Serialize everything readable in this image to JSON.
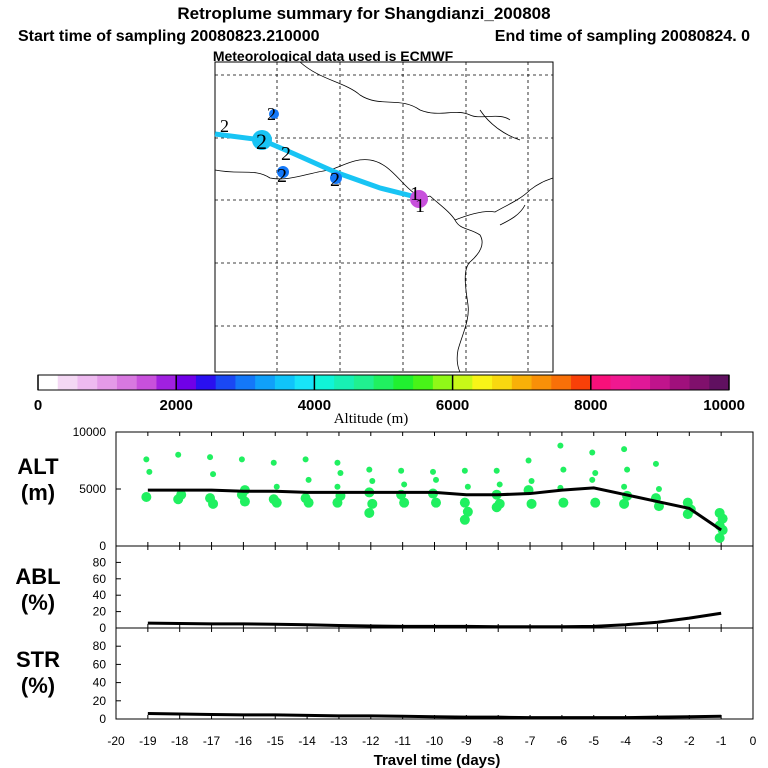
{
  "titles": {
    "main": "Retroplume summary for Shangdianzi_200808",
    "start": "Start time of sampling 20080823.210000",
    "end": "End time of sampling 20080824.     0",
    "met": "Meteorological data used is ECMWF"
  },
  "colorbar": {
    "label": "Altitude (m)",
    "ticks": [
      "0",
      "2000",
      "4000",
      "6000",
      "8000",
      "10000"
    ],
    "colors": [
      "#ffffff",
      "#f4d8f4",
      "#eebaf0",
      "#e49ae8",
      "#d878e0",
      "#c850dc",
      "#a020e0",
      "#7000e8",
      "#2a10f0",
      "#1a48f4",
      "#1478f8",
      "#10a0fa",
      "#10c4fa",
      "#18e4f8",
      "#10f4d8",
      "#18f0b4",
      "#20f090",
      "#20f060",
      "#20f030",
      "#48f418",
      "#90f818",
      "#c8f818",
      "#f8f418",
      "#f8d810",
      "#f8b008",
      "#f89008",
      "#f87008",
      "#f84008",
      "#f8107a",
      "#f01890",
      "#e01898",
      "#c0148c",
      "#a0107c",
      "#80106c",
      "#601060"
    ]
  },
  "map": {
    "markers": [
      "2",
      "2",
      "2",
      "2",
      "2",
      "2",
      "1",
      "1"
    ]
  },
  "chart_data": [
    {
      "type": "line",
      "name": "ALT",
      "label_line1": "ALT",
      "label_line2": "(m)",
      "xlabel": "Travel time (days)",
      "x": [
        -19,
        -18,
        -17,
        -16,
        -15,
        -14,
        -13,
        -12,
        -11,
        -10,
        -9,
        -8,
        -7,
        -6,
        -5,
        -4,
        -3,
        -2,
        -1
      ],
      "values": [
        4900,
        4900,
        4900,
        4800,
        4800,
        4700,
        4700,
        4700,
        4700,
        4700,
        4500,
        4500,
        4600,
        4900,
        5100,
        4500,
        3900,
        3300,
        1400
      ],
      "ylim": [
        0,
        10000
      ],
      "yticks": [
        "0",
        "5000",
        "10000"
      ],
      "scatter": [
        {
          "x": -19,
          "y": [
            7600,
            6500,
            4300
          ]
        },
        {
          "x": -18,
          "y": [
            8000,
            4500,
            4100
          ]
        },
        {
          "x": -17,
          "y": [
            7800,
            6300,
            4200,
            3700
          ]
        },
        {
          "x": -16,
          "y": [
            7600,
            4900,
            4500,
            3900
          ]
        },
        {
          "x": -15,
          "y": [
            7300,
            5200,
            4100,
            3800
          ]
        },
        {
          "x": -14,
          "y": [
            7600,
            5800,
            4200,
            3800
          ]
        },
        {
          "x": -13,
          "y": [
            7300,
            6400,
            5200,
            4400,
            3800
          ]
        },
        {
          "x": -12,
          "y": [
            6700,
            5700,
            4700,
            3700,
            2900
          ]
        },
        {
          "x": -11,
          "y": [
            6600,
            5400,
            4500,
            3800
          ]
        },
        {
          "x": -10,
          "y": [
            6500,
            5800,
            4600,
            3800
          ]
        },
        {
          "x": -9,
          "y": [
            6600,
            5200,
            3800,
            3000,
            2300
          ]
        },
        {
          "x": -8,
          "y": [
            6600,
            5400,
            4500,
            3700,
            3400
          ]
        },
        {
          "x": -7,
          "y": [
            7500,
            5700,
            4900,
            3700
          ]
        },
        {
          "x": -6,
          "y": [
            8800,
            6700,
            5100,
            3800
          ]
        },
        {
          "x": -5,
          "y": [
            8200,
            6400,
            5800,
            3800
          ]
        },
        {
          "x": -4,
          "y": [
            8500,
            6700,
            5200,
            4400,
            3700
          ]
        },
        {
          "x": -3,
          "y": [
            7200,
            5000,
            4200,
            3500
          ]
        },
        {
          "x": -2,
          "y": [
            3800,
            3200,
            2800
          ]
        },
        {
          "x": -1,
          "y": [
            2900,
            2400,
            1800,
            1400,
            700
          ]
        }
      ]
    },
    {
      "type": "line",
      "name": "ABL",
      "label_line1": "ABL",
      "label_line2": "(%)",
      "x": [
        -19,
        -18,
        -17,
        -16,
        -15,
        -14,
        -13,
        -12,
        -11,
        -10,
        -9,
        -8,
        -7,
        -6,
        -5,
        -4,
        -3,
        -2,
        -1
      ],
      "values": [
        6,
        5.5,
        5,
        5,
        4.5,
        4,
        3,
        2.5,
        2,
        2,
        2,
        1.5,
        1.5,
        1.5,
        2,
        4,
        7,
        12,
        18
      ],
      "ylim": [
        0,
        100
      ],
      "yticks": [
        "0",
        "20",
        "40",
        "60",
        "80"
      ]
    },
    {
      "type": "line",
      "name": "STR",
      "label_line1": "STR",
      "label_line2": "(%)",
      "x": [
        -19,
        -18,
        -17,
        -16,
        -15,
        -14,
        -13,
        -12,
        -11,
        -10,
        -9,
        -8,
        -7,
        -6,
        -5,
        -4,
        -3,
        -2,
        -1
      ],
      "values": [
        6,
        5.5,
        5,
        4.5,
        4.5,
        4,
        3.5,
        3.5,
        3,
        2.5,
        2,
        2,
        1.5,
        1.5,
        1.5,
        1.5,
        2,
        2.5,
        3
      ],
      "ylim": [
        0,
        100
      ],
      "yticks": [
        "0",
        "20",
        "40",
        "60",
        "80"
      ],
      "xticks": [
        "-20",
        "-19",
        "-18",
        "-17",
        "-16",
        "-15",
        "-14",
        "-13",
        "-12",
        "-11",
        "-10",
        "-9",
        "-8",
        "-7",
        "-6",
        "-5",
        "-4",
        "-3",
        "-2",
        "-1",
        "0"
      ]
    }
  ]
}
